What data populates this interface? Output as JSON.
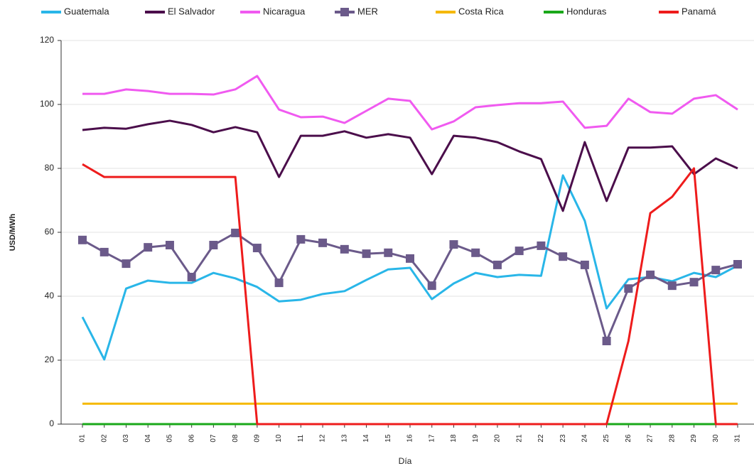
{
  "chart_data": {
    "type": "line",
    "y_label": "USD/MWh",
    "x_label": "Día",
    "categories": [
      "01",
      "02",
      "03",
      "04",
      "05",
      "06",
      "07",
      "08",
      "09",
      "10",
      "11",
      "12",
      "13",
      "14",
      "15",
      "16",
      "17",
      "18",
      "19",
      "20",
      "21",
      "22",
      "23",
      "24",
      "25",
      "26",
      "27",
      "28",
      "29",
      "30",
      "31"
    ],
    "ylim": [
      0,
      120
    ],
    "yticks": [
      0,
      20,
      40,
      60,
      80,
      100,
      120
    ],
    "grid": true,
    "series": [
      {
        "name": "Guatemala",
        "color": "#29b6e8",
        "values": [
          33.5,
          20.2,
          42.4,
          44.9,
          44.2,
          44.2,
          47.3,
          45.6,
          42.9,
          38.4,
          38.9,
          40.7,
          41.6,
          45.1,
          48.4,
          48.9,
          39.1,
          44,
          47.3,
          46,
          46.7,
          46.4,
          77.8,
          63.6,
          36.2,
          45.3,
          46,
          44.7,
          47.3,
          46,
          49.6
        ]
      },
      {
        "name": "El Salvador",
        "color": "#4b0e4b",
        "values": [
          92,
          92.7,
          92.4,
          93.8,
          94.9,
          93.6,
          91.3,
          92.9,
          91.3,
          77.3,
          90.2,
          90.2,
          91.6,
          89.6,
          90.7,
          89.6,
          78.2,
          90.2,
          89.6,
          88.2,
          85.3,
          82.9,
          66.7,
          88.2,
          69.8,
          86.5,
          86.5,
          86.9,
          78.2,
          83.1,
          80
        ]
      },
      {
        "name": "Nicaragua",
        "color": "#f05af0",
        "values": [
          103.3,
          103.3,
          104.7,
          104.2,
          103.3,
          103.3,
          103.1,
          104.7,
          108.9,
          98.4,
          96,
          96.2,
          94.2,
          98,
          101.8,
          101.1,
          92.2,
          94.7,
          99.1,
          99.8,
          100.4,
          100.4,
          100.9,
          92.7,
          93.3,
          101.8,
          97.6,
          97.1,
          101.8,
          102.9,
          98.4
        ]
      },
      {
        "name": "MER",
        "color": "#6b5a8a",
        "marker": "square",
        "values": [
          57.6,
          53.8,
          50.2,
          55.3,
          56,
          46,
          56,
          59.8,
          55.1,
          44.2,
          57.8,
          56.7,
          54.7,
          53.3,
          53.6,
          51.8,
          43.3,
          56.2,
          53.6,
          49.8,
          54.2,
          55.8,
          52.4,
          49.8,
          26,
          42.4,
          46.7,
          43.3,
          44.4,
          48.2,
          50
        ]
      },
      {
        "name": "Costa Rica",
        "color": "#f5b800",
        "values": [
          6.4,
          6.4,
          6.4,
          6.4,
          6.4,
          6.4,
          6.4,
          6.4,
          6.4,
          6.4,
          6.4,
          6.4,
          6.4,
          6.4,
          6.4,
          6.4,
          6.4,
          6.4,
          6.4,
          6.4,
          6.4,
          6.4,
          6.4,
          6.4,
          6.4,
          6.4,
          6.4,
          6.4,
          6.4,
          6.4,
          6.4
        ]
      },
      {
        "name": "Honduras",
        "color": "#1aa81a",
        "values": [
          0,
          0,
          0,
          0,
          0,
          0,
          0,
          0,
          0,
          0,
          0,
          0,
          0,
          0,
          0,
          0,
          0,
          0,
          0,
          0,
          0,
          0,
          0,
          0,
          0,
          0,
          0,
          0,
          0,
          0,
          0
        ]
      },
      {
        "name": "Panamá",
        "color": "#ee1c1c",
        "values": [
          81.3,
          77.3,
          77.3,
          77.3,
          77.3,
          77.3,
          77.3,
          77.3,
          0,
          0,
          0,
          0,
          0,
          0,
          0,
          0,
          0,
          0,
          0,
          0,
          0,
          0,
          0,
          0,
          0,
          26,
          66,
          71.1,
          80,
          0,
          0
        ]
      }
    ]
  }
}
